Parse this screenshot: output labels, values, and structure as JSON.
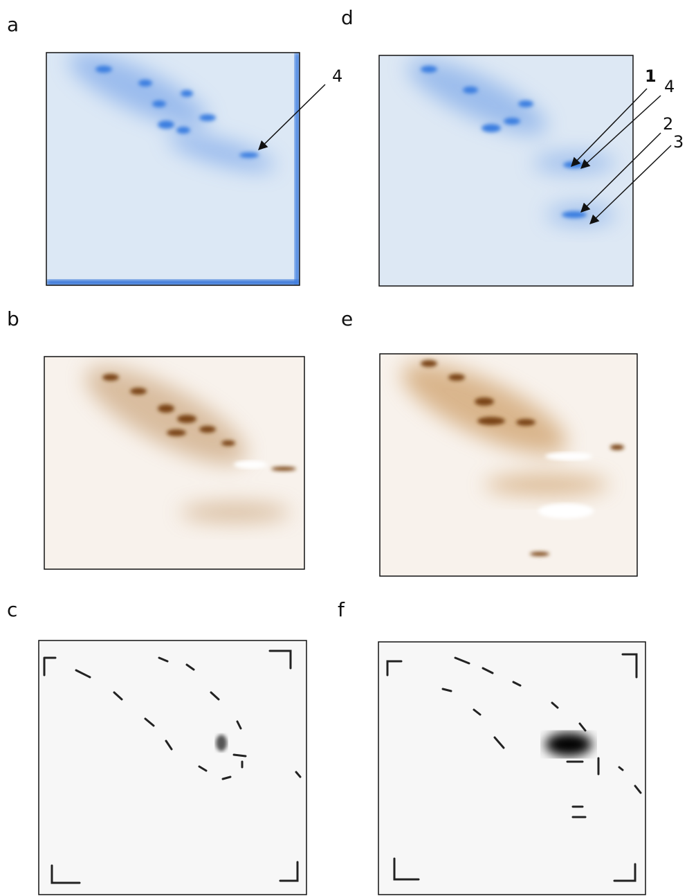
{
  "panels": [
    {
      "label": "a",
      "arrows": [
        "4"
      ]
    },
    {
      "label": "b"
    },
    {
      "label": "c"
    },
    {
      "label": "d",
      "arrows": [
        "1",
        "4",
        "2",
        "3"
      ]
    },
    {
      "label": "e"
    },
    {
      "label": "f"
    }
  ]
}
